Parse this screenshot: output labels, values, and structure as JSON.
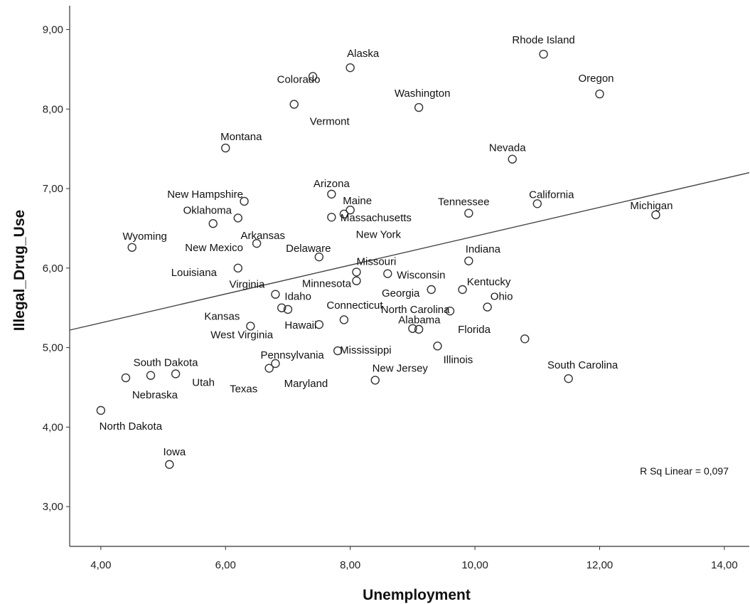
{
  "chart_data": {
    "type": "scatter",
    "xlabel": "Unemployment",
    "ylabel": "Illegal_Drug_Use",
    "xlim": [
      3.5,
      14.4
    ],
    "ylim": [
      2.5,
      9.3
    ],
    "xticks": [
      4,
      6,
      8,
      10,
      12,
      14
    ],
    "yticks": [
      3,
      4,
      5,
      6,
      7,
      8,
      9
    ],
    "xtick_labels": [
      "4,00",
      "6,00",
      "8,00",
      "10,00",
      "12,00",
      "14,00"
    ],
    "ytick_labels": [
      "3,00",
      "4,00",
      "5,00",
      "6,00",
      "7,00",
      "8,00",
      "9,00"
    ],
    "grid": false,
    "fit_line": {
      "type": "linear",
      "x": [
        3.5,
        14.4
      ],
      "y": [
        5.22,
        7.2
      ]
    },
    "annotation": "R Sq Linear = 0,097",
    "points": [
      {
        "label": "Alaska",
        "x": 8.0,
        "y": 8.52
      },
      {
        "label": "Rhode Island",
        "x": 11.1,
        "y": 8.69
      },
      {
        "label": "Colorado",
        "x": 7.4,
        "y": 8.41
      },
      {
        "label": "Oregon",
        "x": 12.0,
        "y": 8.19
      },
      {
        "label": "Vermont",
        "x": 7.1,
        "y": 8.06
      },
      {
        "label": "Washington",
        "x": 9.1,
        "y": 8.02
      },
      {
        "label": "Montana",
        "x": 6.0,
        "y": 7.51
      },
      {
        "label": "Nevada",
        "x": 10.6,
        "y": 7.37
      },
      {
        "label": "Arizona",
        "x": 7.7,
        "y": 6.93
      },
      {
        "label": "New Hampshire",
        "x": 6.3,
        "y": 6.84
      },
      {
        "label": "California",
        "x": 11.0,
        "y": 6.81
      },
      {
        "label": "Maine",
        "x": 8.0,
        "y": 6.73
      },
      {
        "label": "Tennessee",
        "x": 9.9,
        "y": 6.69
      },
      {
        "label": "Massachusetts",
        "x": 7.9,
        "y": 6.68
      },
      {
        "label": "Michigan",
        "x": 12.9,
        "y": 6.67
      },
      {
        "label": "New York",
        "x": 7.7,
        "y": 6.64
      },
      {
        "label": "Oklahoma",
        "x": 6.2,
        "y": 6.63
      },
      {
        "label": "Arkansas",
        "x": 5.8,
        "y": 6.56
      },
      {
        "label": "New Mexico",
        "x": 6.5,
        "y": 6.31
      },
      {
        "label": "Wyoming",
        "x": 4.5,
        "y": 6.26
      },
      {
        "label": "Delaware",
        "x": 7.5,
        "y": 6.14
      },
      {
        "label": "Indiana",
        "x": 9.9,
        "y": 6.09
      },
      {
        "label": "Louisiana",
        "x": 6.2,
        "y": 6.0
      },
      {
        "label": "Missouri",
        "x": 8.1,
        "y": 5.95
      },
      {
        "label": "Wisconsin",
        "x": 8.6,
        "y": 5.93
      },
      {
        "label": "Minnesota",
        "x": 8.1,
        "y": 5.84
      },
      {
        "label": "Georgia",
        "x": 9.3,
        "y": 5.73
      },
      {
        "label": "Kentucky",
        "x": 9.8,
        "y": 5.73
      },
      {
        "label": "Virginia",
        "x": 6.8,
        "y": 5.67
      },
      {
        "label": "Ohio",
        "x": 10.2,
        "y": 5.51
      },
      {
        "label": "Idaho",
        "x": 6.9,
        "y": 5.5
      },
      {
        "label": "Connecticut",
        "x": 7.0,
        "y": 5.48
      },
      {
        "label": "Florida",
        "x": 9.6,
        "y": 5.46
      },
      {
        "label": "Alabama",
        "x": 7.9,
        "y": 5.35
      },
      {
        "label": "Hawaii",
        "x": 7.5,
        "y": 5.29
      },
      {
        "label": "Kansas",
        "x": 6.4,
        "y": 5.27
      },
      {
        "label": "Mississippi",
        "x": 9.0,
        "y": 5.24
      },
      {
        "label": "North Carolina",
        "x": 9.1,
        "y": 5.23
      },
      {
        "label": "West Virginia",
        "x": 10.8,
        "y": 5.11
      },
      {
        "label": "Illinois",
        "x": 9.4,
        "y": 5.02
      },
      {
        "label": "Pennsylvania",
        "x": 7.8,
        "y": 4.96
      },
      {
        "label": "Maryland",
        "x": 6.8,
        "y": 4.8
      },
      {
        "label": "Texas",
        "x": 6.7,
        "y": 4.74
      },
      {
        "label": "Utah",
        "x": 5.2,
        "y": 4.67
      },
      {
        "label": "South Dakota",
        "x": 4.8,
        "y": 4.65
      },
      {
        "label": "Nebraska",
        "x": 4.4,
        "y": 4.62
      },
      {
        "label": "South Carolina",
        "x": 11.5,
        "y": 4.61
      },
      {
        "label": "New Jersey",
        "x": 8.4,
        "y": 4.59
      },
      {
        "label": "North Dakota",
        "x": 4.0,
        "y": 4.21
      },
      {
        "label": "Iowa",
        "x": 5.1,
        "y": 3.53
      }
    ]
  }
}
